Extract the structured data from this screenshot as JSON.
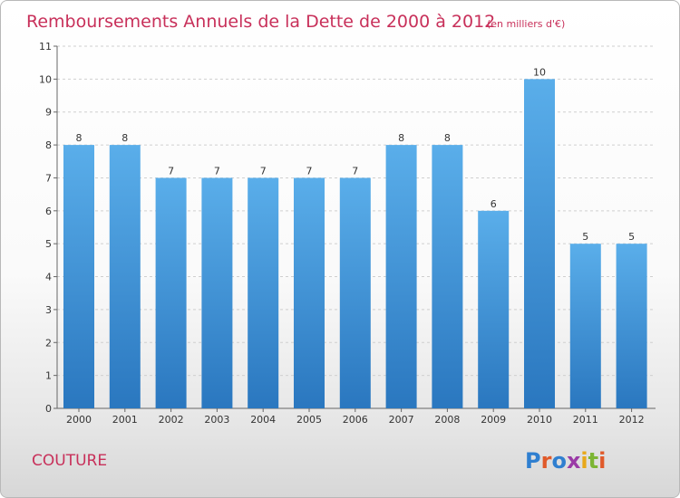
{
  "title": "Remboursements Annuels de la Dette de 2000 à 2012",
  "unit_note": "(en milliers d'€)",
  "location": "COUTURE",
  "logo": {
    "text": "Proxiti",
    "letter_colors": [
      "#2f7fd0",
      "#e05a2a",
      "#2f7fd0",
      "#9a3aa6",
      "#e8a81a",
      "#7cb534",
      "#e05a2a"
    ]
  },
  "colors": {
    "title": "#c8305a",
    "bar_top": "#5aaeea",
    "bar_bottom": "#2a77bf",
    "grid": "#cfcfcf"
  },
  "chart_data": {
    "type": "bar",
    "categories": [
      "2000",
      "2001",
      "2002",
      "2003",
      "2004",
      "2005",
      "2006",
      "2007",
      "2008",
      "2009",
      "2010",
      "2011",
      "2012"
    ],
    "values": [
      8,
      8,
      7,
      7,
      7,
      7,
      7,
      8,
      8,
      6,
      10,
      5,
      5
    ],
    "data_labels": [
      "8",
      "8",
      "7",
      "7",
      "7",
      "7",
      "7",
      "8",
      "8",
      "6",
      "10",
      "5",
      "5"
    ],
    "yticks": [
      "0",
      "1",
      "2",
      "3",
      "4",
      "5",
      "6",
      "7",
      "8",
      "9",
      "10",
      "11"
    ],
    "ylim": [
      0,
      11
    ],
    "grid": true,
    "xlabel": "",
    "ylabel": ""
  }
}
